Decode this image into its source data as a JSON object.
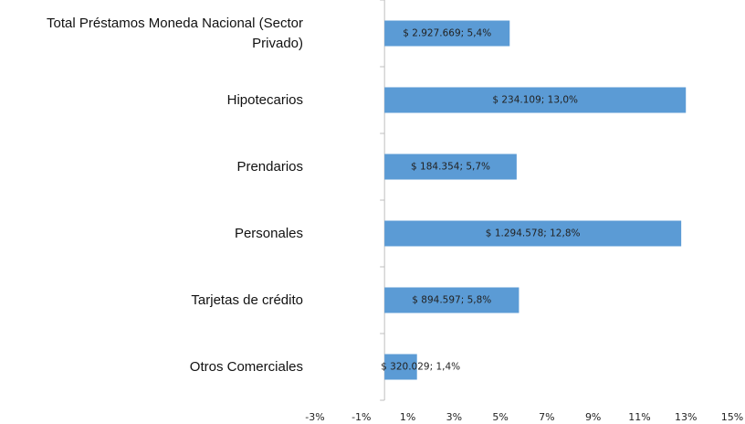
{
  "chart_data": {
    "type": "hbar",
    "categories": [
      "Total Préstamos Moneda Nacional (Sector Privado)",
      "Hipotecarios",
      "Prendarios",
      "Personales",
      "Tarjetas de crédito",
      "Otros Comerciales"
    ],
    "values": [
      5.4,
      13.0,
      5.7,
      12.8,
      5.8,
      1.4
    ],
    "value_labels": [
      "$ 2.927.669; 5,4%",
      "$ 234.109; 13,0%",
      "$ 184.354; 5,7%",
      "$ 1.294.578; 12,8%",
      "$ 894.597; 5,8%",
      "$ 320.029; 1,4%"
    ],
    "color": "#5b9bd5",
    "xlim": [
      -3,
      15
    ],
    "xticks": [
      {
        "value": -3,
        "label": "-3%"
      },
      {
        "value": -1,
        "label": "-1%"
      },
      {
        "value": 1,
        "label": "1%"
      },
      {
        "value": 3,
        "label": "3%"
      },
      {
        "value": 5,
        "label": "5%"
      },
      {
        "value": 7,
        "label": "7%"
      },
      {
        "value": 9,
        "label": "9%"
      },
      {
        "value": 11,
        "label": "11%"
      },
      {
        "value": 13,
        "label": "13%"
      },
      {
        "value": 15,
        "label": "15%"
      }
    ],
    "grid": false
  }
}
